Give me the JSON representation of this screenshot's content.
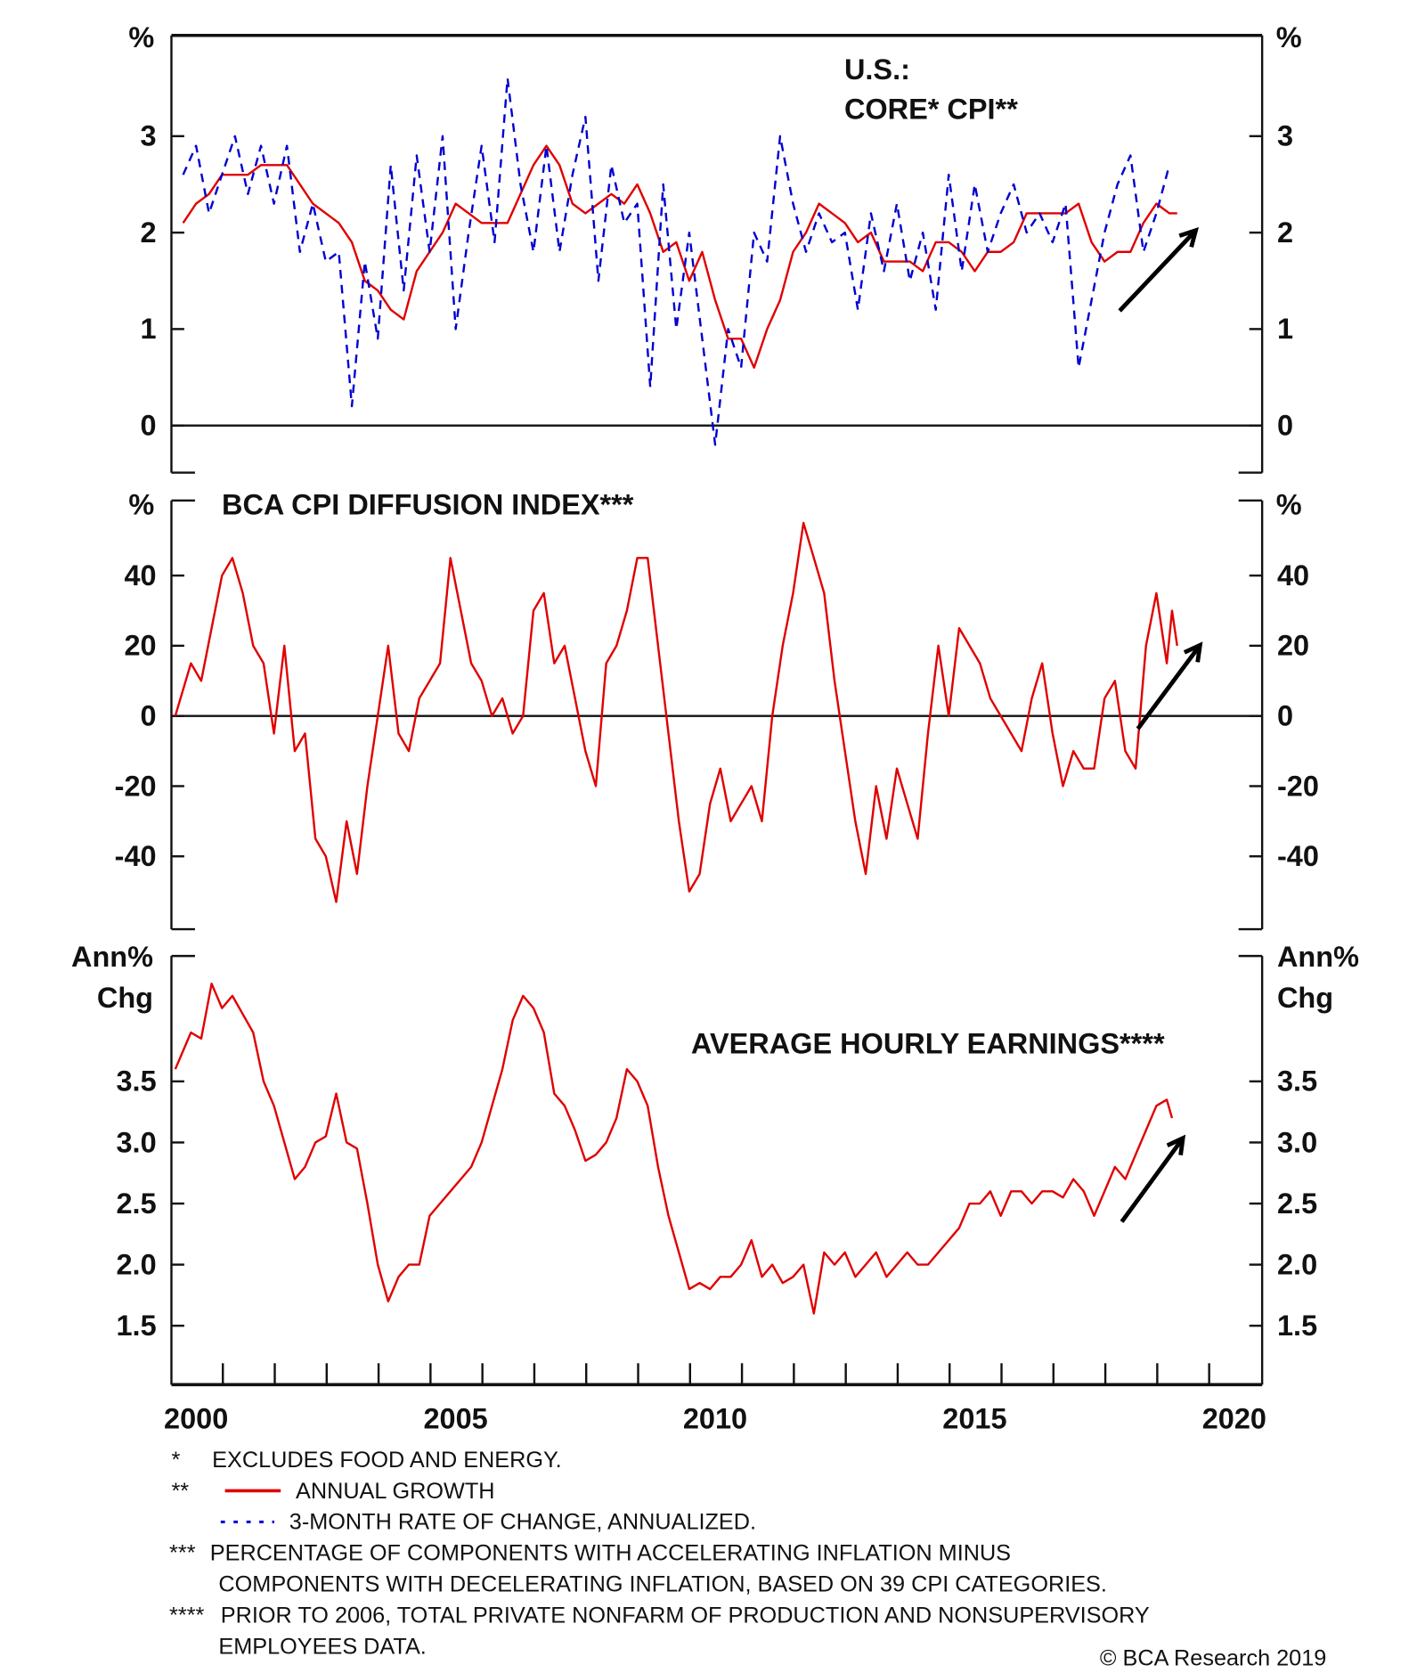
{
  "chart_data": [
    {
      "type": "line",
      "title": "U.S.:",
      "subtitle": "CORE* CPI**",
      "ylabel_left": "%",
      "ylabel_right": "%",
      "ylim": [
        -0.5,
        4.0
      ],
      "yticks": [
        0,
        1,
        2,
        3
      ],
      "ytick_labels": [
        "0",
        "1",
        "2",
        "3"
      ],
      "series": [
        {
          "name": "ANNUAL GROWTH",
          "color": "#e00000",
          "style": "solid",
          "x": [
            1999.75,
            2000,
            2000.25,
            2000.5,
            2000.75,
            2001,
            2001.25,
            2001.5,
            2001.75,
            2002,
            2002.25,
            2002.5,
            2002.75,
            2003,
            2003.25,
            2003.5,
            2003.75,
            2004,
            2004.25,
            2004.5,
            2004.75,
            2005,
            2005.25,
            2005.5,
            2005.75,
            2006,
            2006.25,
            2006.5,
            2006.75,
            2007,
            2007.25,
            2007.5,
            2007.75,
            2008,
            2008.25,
            2008.5,
            2008.75,
            2009,
            2009.25,
            2009.5,
            2009.75,
            2010,
            2010.25,
            2010.5,
            2010.75,
            2011,
            2011.25,
            2011.5,
            2011.75,
            2012,
            2012.25,
            2012.5,
            2012.75,
            2013,
            2013.25,
            2013.5,
            2013.75,
            2014,
            2014.25,
            2014.5,
            2014.75,
            2015,
            2015.25,
            2015.5,
            2015.75,
            2016,
            2016.25,
            2016.5,
            2016.75,
            2017,
            2017.25,
            2017.5,
            2017.75,
            2018,
            2018.25,
            2018.5,
            2018.75,
            2018.9
          ],
          "y": [
            2.1,
            2.3,
            2.4,
            2.6,
            2.6,
            2.6,
            2.7,
            2.7,
            2.7,
            2.5,
            2.3,
            2.2,
            2.1,
            1.9,
            1.5,
            1.4,
            1.2,
            1.1,
            1.6,
            1.8,
            2.0,
            2.3,
            2.2,
            2.1,
            2.1,
            2.1,
            2.4,
            2.7,
            2.9,
            2.7,
            2.3,
            2.2,
            2.3,
            2.4,
            2.3,
            2.5,
            2.2,
            1.8,
            1.9,
            1.5,
            1.8,
            1.3,
            0.9,
            0.9,
            0.6,
            1.0,
            1.3,
            1.8,
            2.0,
            2.3,
            2.2,
            2.1,
            1.9,
            2.0,
            1.7,
            1.7,
            1.7,
            1.6,
            1.9,
            1.9,
            1.8,
            1.6,
            1.8,
            1.8,
            1.9,
            2.2,
            2.2,
            2.2,
            2.2,
            2.3,
            1.9,
            1.7,
            1.8,
            1.8,
            2.1,
            2.3,
            2.2,
            2.2
          ]
        },
        {
          "name": "3-MONTH RATE OF CHANGE, ANNUALIZED.",
          "color": "#0000d0",
          "style": "dashed",
          "x": [
            1999.75,
            2000,
            2000.25,
            2000.5,
            2000.75,
            2001,
            2001.25,
            2001.5,
            2001.75,
            2002,
            2002.25,
            2002.5,
            2002.75,
            2003,
            2003.25,
            2003.5,
            2003.75,
            2004,
            2004.25,
            2004.5,
            2004.75,
            2005,
            2005.25,
            2005.5,
            2005.75,
            2006,
            2006.25,
            2006.5,
            2006.75,
            2007,
            2007.25,
            2007.5,
            2007.75,
            2008,
            2008.25,
            2008.5,
            2008.75,
            2009,
            2009.25,
            2009.5,
            2009.75,
            2010,
            2010.25,
            2010.5,
            2010.75,
            2011,
            2011.25,
            2011.5,
            2011.75,
            2012,
            2012.25,
            2012.5,
            2012.75,
            2013,
            2013.25,
            2013.5,
            2013.75,
            2014,
            2014.25,
            2014.5,
            2014.75,
            2015,
            2015.25,
            2015.5,
            2015.75,
            2016,
            2016.25,
            2016.5,
            2016.75,
            2017,
            2017.25,
            2017.5,
            2017.75,
            2018,
            2018.25,
            2018.5,
            2018.75
          ],
          "y": [
            2.6,
            2.9,
            2.2,
            2.6,
            3.0,
            2.4,
            2.9,
            2.3,
            2.9,
            1.8,
            2.3,
            1.7,
            1.8,
            0.2,
            1.7,
            0.9,
            2.7,
            1.4,
            2.8,
            1.8,
            3.0,
            1.0,
            2.0,
            2.9,
            1.9,
            3.6,
            2.5,
            1.8,
            2.9,
            1.8,
            2.6,
            3.2,
            1.5,
            2.7,
            2.1,
            2.3,
            0.4,
            2.5,
            1.0,
            2.0,
            0.9,
            -0.2,
            1.0,
            0.6,
            2.0,
            1.7,
            3.0,
            2.3,
            1.8,
            2.2,
            1.9,
            2.0,
            1.2,
            2.2,
            1.6,
            2.3,
            1.5,
            2.0,
            1.2,
            2.6,
            1.6,
            2.5,
            1.8,
            2.2,
            2.5,
            2.0,
            2.2,
            1.9,
            2.3,
            0.6,
            1.3,
            2.0,
            2.5,
            2.8,
            1.8,
            2.2,
            2.7
          ]
        }
      ]
    },
    {
      "type": "line",
      "title": "BCA CPI DIFFUSION INDEX***",
      "ylabel_left": "%",
      "ylabel_right": "%",
      "ylim": [
        -61,
        61
      ],
      "yticks": [
        -40,
        -20,
        0,
        20,
        40
      ],
      "ytick_labels": [
        "-40",
        "-20",
        "0",
        "20",
        "40"
      ],
      "series": [
        {
          "name": "BCA CPI Diffusion Index",
          "color": "#e00000",
          "style": "solid",
          "x": [
            1999.6,
            1999.9,
            2000.1,
            2000.3,
            2000.5,
            2000.7,
            2000.9,
            2001.1,
            2001.3,
            2001.5,
            2001.7,
            2001.9,
            2002.1,
            2002.3,
            2002.5,
            2002.7,
            2002.9,
            2003.1,
            2003.3,
            2003.5,
            2003.7,
            2003.9,
            2004.1,
            2004.3,
            2004.5,
            2004.7,
            2004.9,
            2005.1,
            2005.3,
            2005.5,
            2005.7,
            2005.9,
            2006.1,
            2006.3,
            2006.5,
            2006.7,
            2006.9,
            2007.1,
            2007.3,
            2007.5,
            2007.7,
            2007.9,
            2008.1,
            2008.3,
            2008.5,
            2008.7,
            2008.9,
            2009.1,
            2009.3,
            2009.5,
            2009.7,
            2009.9,
            2010.1,
            2010.3,
            2010.5,
            2010.7,
            2010.9,
            2011.1,
            2011.3,
            2011.5,
            2011.7,
            2011.9,
            2012.1,
            2012.3,
            2012.5,
            2012.7,
            2012.9,
            2013.1,
            2013.3,
            2013.5,
            2013.7,
            2013.9,
            2014.1,
            2014.3,
            2014.5,
            2014.7,
            2014.9,
            2015.1,
            2015.3,
            2015.5,
            2015.7,
            2015.9,
            2016.1,
            2016.3,
            2016.5,
            2016.7,
            2016.9,
            2017.1,
            2017.3,
            2017.5,
            2017.7,
            2017.9,
            2018.1,
            2018.3,
            2018.5,
            2018.7,
            2018.8,
            2018.9
          ],
          "y": [
            0,
            15,
            10,
            25,
            40,
            45,
            35,
            20,
            15,
            -5,
            20,
            -10,
            -5,
            -35,
            -40,
            -53,
            -30,
            -45,
            -20,
            0,
            20,
            -5,
            -10,
            5,
            10,
            15,
            45,
            30,
            15,
            10,
            0,
            5,
            -5,
            0,
            30,
            35,
            15,
            20,
            5,
            -10,
            -20,
            15,
            20,
            30,
            45,
            45,
            20,
            -5,
            -30,
            -50,
            -45,
            -25,
            -15,
            -30,
            -25,
            -20,
            -30,
            0,
            20,
            35,
            55,
            45,
            35,
            10,
            -10,
            -30,
            -45,
            -20,
            -35,
            -15,
            -25,
            -35,
            -5,
            20,
            0,
            25,
            20,
            15,
            5,
            0,
            -5,
            -10,
            5,
            15,
            -5,
            -20,
            -10,
            -15,
            -15,
            5,
            10,
            -10,
            -15,
            20,
            35,
            15,
            30,
            20
          ]
        }
      ]
    },
    {
      "type": "line",
      "title": "AVERAGE HOURLY EARNINGS****",
      "ylabel_left": "Ann% Chg",
      "ylabel_right": "Ann% Chg",
      "ylim": [
        1.0,
        4.5
      ],
      "yticks": [
        1.5,
        2.0,
        2.5,
        3.0,
        3.5
      ],
      "ytick_labels": [
        "1.5",
        "2.0",
        "2.5",
        "3.0",
        "3.5"
      ],
      "xlim": [
        1999.5,
        2020.5
      ],
      "xtick_labels": [
        "2000",
        "2005",
        "2010",
        "2015",
        "2020"
      ],
      "series": [
        {
          "name": "Average Hourly Earnings",
          "color": "#e00000",
          "style": "solid",
          "x": [
            1999.6,
            1999.9,
            2000.1,
            2000.3,
            2000.5,
            2000.7,
            2000.9,
            2001.1,
            2001.3,
            2001.5,
            2001.7,
            2001.9,
            2002.1,
            2002.3,
            2002.5,
            2002.7,
            2002.9,
            2003.1,
            2003.3,
            2003.5,
            2003.7,
            2003.9,
            2004.1,
            2004.3,
            2004.5,
            2004.7,
            2004.9,
            2005.1,
            2005.3,
            2005.5,
            2005.7,
            2005.9,
            2006.1,
            2006.3,
            2006.5,
            2006.7,
            2006.9,
            2007.1,
            2007.3,
            2007.5,
            2007.7,
            2007.9,
            2008.1,
            2008.3,
            2008.5,
            2008.7,
            2008.9,
            2009.1,
            2009.3,
            2009.5,
            2009.7,
            2009.9,
            2010.1,
            2010.3,
            2010.5,
            2010.7,
            2010.9,
            2011.1,
            2011.3,
            2011.5,
            2011.7,
            2011.9,
            2012.1,
            2012.3,
            2012.5,
            2012.7,
            2012.9,
            2013.1,
            2013.3,
            2013.5,
            2013.7,
            2013.9,
            2014.1,
            2014.3,
            2014.5,
            2014.7,
            2014.9,
            2015.1,
            2015.3,
            2015.5,
            2015.7,
            2015.9,
            2016.1,
            2016.3,
            2016.5,
            2016.7,
            2016.9,
            2017.1,
            2017.3,
            2017.5,
            2017.7,
            2017.9,
            2018.1,
            2018.3,
            2018.5,
            2018.7,
            2018.8
          ],
          "y": [
            3.6,
            3.9,
            3.85,
            4.3,
            4.1,
            4.2,
            4.05,
            3.9,
            3.5,
            3.3,
            3.0,
            2.7,
            2.8,
            3.0,
            3.05,
            3.4,
            3.0,
            2.95,
            2.5,
            2.0,
            1.7,
            1.9,
            2.0,
            2.0,
            2.4,
            2.5,
            2.6,
            2.7,
            2.8,
            3.0,
            3.3,
            3.6,
            4.0,
            4.2,
            4.1,
            3.9,
            3.4,
            3.3,
            3.1,
            2.85,
            2.9,
            3.0,
            3.2,
            3.6,
            3.5,
            3.3,
            2.8,
            2.4,
            2.1,
            1.8,
            1.85,
            1.8,
            1.9,
            1.9,
            2.0,
            2.2,
            1.9,
            2.0,
            1.85,
            1.9,
            2.0,
            1.6,
            2.1,
            2.0,
            2.1,
            1.9,
            2.0,
            2.1,
            1.9,
            2.0,
            2.1,
            2.0,
            2.0,
            2.1,
            2.2,
            2.3,
            2.5,
            2.5,
            2.6,
            2.4,
            2.6,
            2.6,
            2.5,
            2.6,
            2.6,
            2.55,
            2.7,
            2.6,
            2.4,
            2.6,
            2.8,
            2.7,
            2.9,
            3.1,
            3.3,
            3.35,
            3.2
          ]
        }
      ]
    }
  ],
  "footnotes": [
    {
      "mark": "*",
      "text": "EXCLUDES FOOD AND ENERGY."
    },
    {
      "mark": "**",
      "text": "ANNUAL GROWTH"
    },
    {
      "mark": "",
      "text": "3-MONTH RATE OF CHANGE, ANNUALIZED."
    },
    {
      "mark": "***",
      "text": "PERCENTAGE OF COMPONENTS WITH ACCELERATING INFLATION MINUS"
    },
    {
      "mark": "",
      "text": "COMPONENTS WITH DECELERATING INFLATION, BASED ON 39 CPI CATEGORIES."
    },
    {
      "mark": "****",
      "text": "PRIOR TO 2006, TOTAL PRIVATE NONFARM OF PRODUCTION AND NONSUPERVISORY"
    },
    {
      "mark": "",
      "text": "EMPLOYEES DATA."
    }
  ],
  "copyright": "© BCA Research 2019",
  "colors": {
    "red": "#e00000",
    "blue": "#0000d0",
    "axis": "#111111"
  }
}
